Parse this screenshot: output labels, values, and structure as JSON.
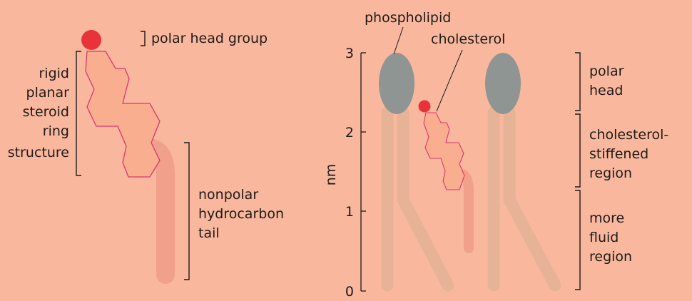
{
  "left": {
    "polar_head_label": "polar head group",
    "ring_label": [
      "rigid",
      "planar",
      "steroid",
      "ring",
      "structure"
    ],
    "tail_label": [
      "nonpolar",
      "hydrocarbon",
      "tail"
    ]
  },
  "right": {
    "phospholipid_label": "phospholipid",
    "cholesterol_label": "cholesterol",
    "axis": {
      "unit": "nm",
      "ticks": [
        "0",
        "1",
        "2",
        "3"
      ]
    },
    "region_labels": {
      "polar_head": [
        "polar",
        "head"
      ],
      "stiffened": [
        "cholesterol-",
        "stiffened",
        "region"
      ],
      "fluid": [
        "more",
        "fluid",
        "region"
      ]
    }
  },
  "colors": {
    "background": "#f9b89e",
    "head_red": "#e8333b",
    "ring_outline": "#d9366e",
    "tail_salmon": "#f1a08b",
    "phospholipid_head": "#8f9593",
    "phospholipid_tail": "#e6b397",
    "text": "#1e1a18"
  }
}
